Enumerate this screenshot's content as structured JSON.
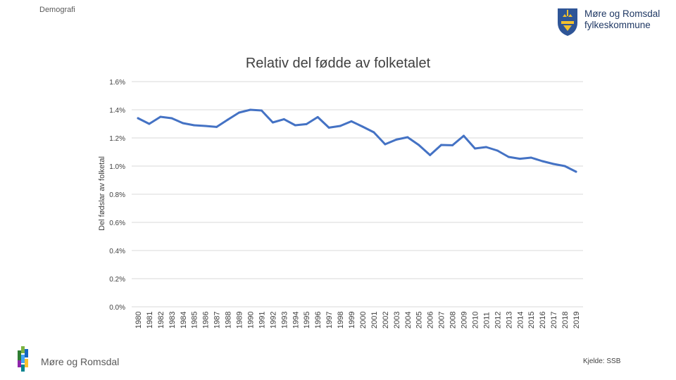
{
  "slide": {
    "section_label": "Demografi",
    "org_line1": "Møre og Romsdal",
    "org_line2": "fylkeskommune",
    "footer_name": "Møre og Romsdal",
    "source": "Kjelde: SSB"
  },
  "colors": {
    "line": "#4472c4",
    "grid": "#d9d9d9",
    "text": "#404040",
    "logo_blue": "#2e5597",
    "logo_yellow": "#f2c12e"
  },
  "chart_data": {
    "type": "line",
    "title": "Relativ del fødde av folketalet",
    "xlabel": "",
    "ylabel": "Del fødslar av folketal",
    "ylim": [
      0,
      0.016
    ],
    "yticks": [
      0,
      0.002,
      0.004,
      0.006,
      0.008,
      0.01,
      0.012,
      0.014,
      0.016
    ],
    "ytick_labels": [
      "0.0%",
      "0.2%",
      "0.4%",
      "0.6%",
      "0.8%",
      "1.0%",
      "1.2%",
      "1.4%",
      "1.6%"
    ],
    "grid": true,
    "legend": "none",
    "x": [
      "1980",
      "1981",
      "1982",
      "1983",
      "1984",
      "1985",
      "1986",
      "1987",
      "1988",
      "1989",
      "1990",
      "1991",
      "1992",
      "1993",
      "1994",
      "1995",
      "1996",
      "1997",
      "1998",
      "1999",
      "2000",
      "2001",
      "2002",
      "2003",
      "2004",
      "2005",
      "2006",
      "2007",
      "2008",
      "2009",
      "2010",
      "2011",
      "2012",
      "2013",
      "2014",
      "2015",
      "2016",
      "2017",
      "2018",
      "2019"
    ],
    "series": [
      {
        "values": [
          0.0134,
          0.013,
          0.0135,
          0.0134,
          0.01305,
          0.0129,
          0.01285,
          0.01278,
          0.0133,
          0.0138,
          0.014,
          0.01395,
          0.0131,
          0.01333,
          0.0129,
          0.01298,
          0.01348,
          0.01273,
          0.01285,
          0.01318,
          0.0128,
          0.0124,
          0.01155,
          0.01188,
          0.01205,
          0.0115,
          0.01078,
          0.0115,
          0.01148,
          0.01215,
          0.01125,
          0.01135,
          0.0111,
          0.01065,
          0.01052,
          0.0106,
          0.01035,
          0.01015,
          0.01,
          0.0096
        ]
      }
    ]
  }
}
